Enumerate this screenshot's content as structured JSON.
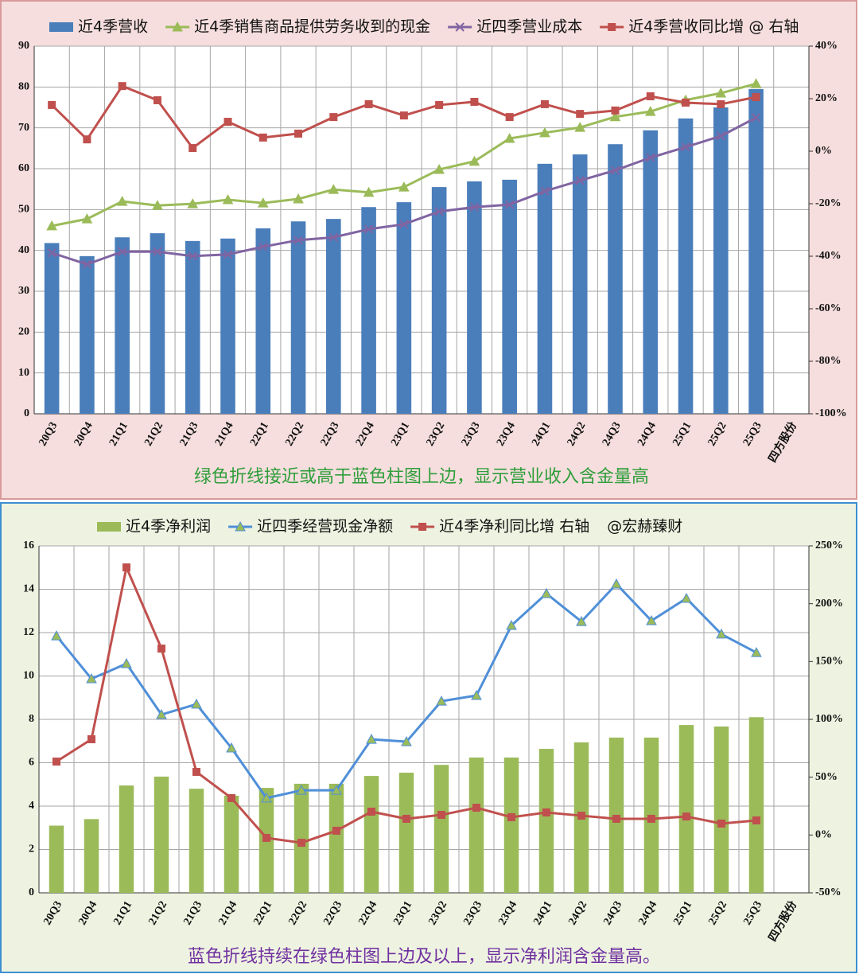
{
  "chart_data": [
    {
      "type": "bar",
      "categories": [
        "20Q3",
        "20Q4",
        "21Q1",
        "21Q2",
        "21Q3",
        "21Q4",
        "22Q1",
        "22Q2",
        "22Q3",
        "22Q4",
        "23Q1",
        "23Q2",
        "23Q3",
        "23Q4",
        "24Q1",
        "24Q2",
        "24Q3",
        "24Q4",
        "25Q1",
        "25Q2",
        "25Q3",
        "四方股份"
      ],
      "series": [
        {
          "name": "近4季营收",
          "type": "bar",
          "color": "#4a7ebb",
          "values": [
            41.8,
            38.6,
            43.2,
            44.2,
            42.3,
            42.9,
            45.4,
            47.1,
            47.7,
            50.6,
            51.8,
            55.5,
            56.9,
            57.3,
            61.2,
            63.5,
            66.0,
            69.4,
            72.3,
            75.0,
            79.5,
            null
          ]
        },
        {
          "name": "近4季销售商品提供劳务收到的现金",
          "type": "line",
          "marker": "triangle",
          "color": "#9bbb59",
          "values": [
            46.0,
            47.7,
            52.0,
            51.0,
            51.4,
            52.4,
            51.6,
            52.6,
            54.9,
            54.2,
            55.5,
            59.8,
            61.8,
            67.4,
            68.8,
            70.1,
            72.7,
            74.0,
            76.8,
            78.5,
            80.8,
            null
          ]
        },
        {
          "name": "近四季营业成本",
          "type": "line",
          "marker": "x",
          "color": "#8064a2",
          "values": [
            39.4,
            36.6,
            39.7,
            39.7,
            38.6,
            39.0,
            40.9,
            42.5,
            43.2,
            45.2,
            46.4,
            49.5,
            50.6,
            51.2,
            54.5,
            57.1,
            59.6,
            62.7,
            65.3,
            68.0,
            72.5,
            null
          ]
        },
        {
          "name": "近4季营收同比增 @ 右轴",
          "type": "line",
          "marker": "square",
          "color": "#c0504d",
          "axis": "y2",
          "values": [
            17.6,
            4.5,
            24.8,
            19.4,
            1.2,
            11.2,
            5.2,
            6.7,
            13.0,
            17.9,
            13.6,
            17.6,
            18.8,
            13.0,
            17.9,
            14.2,
            15.5,
            20.9,
            18.5,
            17.9,
            20.6,
            null
          ]
        }
      ],
      "ylim": [
        0,
        90
      ],
      "yticks": [
        0,
        10,
        20,
        30,
        40,
        50,
        60,
        70,
        80,
        90
      ],
      "y2lim": [
        -100,
        40
      ],
      "y2ticks": [
        {
          "value": -100,
          "label": "-100%"
        },
        {
          "value": -80,
          "label": "-80%"
        },
        {
          "value": -60,
          "label": "-60%"
        },
        {
          "value": -40,
          "label": "-40%"
        },
        {
          "value": -20,
          "label": "-20%"
        },
        {
          "value": 0,
          "label": "0%"
        },
        {
          "value": 20,
          "label": "20%"
        },
        {
          "value": 40,
          "label": "40%"
        }
      ],
      "grid": true,
      "legend": "top",
      "caption": "绿色折线接近或高于蓝色柱图上边，显示营业收入含金量高"
    },
    {
      "type": "bar",
      "categories": [
        "20Q3",
        "20Q4",
        "21Q1",
        "21Q2",
        "21Q3",
        "21Q4",
        "22Q1",
        "22Q2",
        "22Q3",
        "22Q4",
        "23Q1",
        "23Q2",
        "23Q3",
        "23Q4",
        "24Q1",
        "24Q2",
        "24Q3",
        "24Q4",
        "25Q1",
        "25Q2",
        "25Q3",
        "四方股份"
      ],
      "series": [
        {
          "name": "近4季净利润",
          "type": "bar",
          "color": "#9bbb59",
          "values": [
            3.1,
            3.4,
            4.95,
            5.36,
            4.8,
            4.48,
            4.84,
            5.03,
            5.03,
            5.39,
            5.54,
            5.9,
            6.24,
            6.24,
            6.64,
            6.94,
            7.16,
            7.16,
            7.74,
            7.67,
            8.1,
            null
          ]
        },
        {
          "name": "近四季经营现金净额",
          "type": "line",
          "marker": "triangle",
          "color": "#4f8fd8",
          "marker_color": "#9bbb59",
          "values": [
            11.85,
            9.87,
            10.57,
            8.22,
            8.7,
            6.68,
            4.37,
            4.73,
            4.73,
            7.08,
            6.97,
            8.84,
            9.1,
            12.33,
            13.8,
            12.51,
            14.24,
            12.55,
            13.58,
            11.93,
            11.08,
            null
          ]
        },
        {
          "name": "近4季净利同比增 右轴",
          "type": "line",
          "marker": "square",
          "color": "#c0504d",
          "axis": "y2",
          "values": [
            63.5,
            82.8,
            231.4,
            161.2,
            54.6,
            31.9,
            -2.5,
            -6.7,
            3.7,
            20.2,
            14.0,
            17.4,
            23.6,
            15.4,
            19.5,
            16.7,
            14.0,
            14.0,
            16.0,
            9.9,
            12.6,
            null
          ]
        }
      ],
      "legend_note": "@宏赫臻财",
      "ylim": [
        0,
        16
      ],
      "yticks": [
        0,
        2,
        4,
        6,
        8,
        10,
        12,
        14,
        16
      ],
      "y2lim": [
        -50,
        250
      ],
      "y2ticks": [
        {
          "value": -50,
          "label": "-50%"
        },
        {
          "value": 0,
          "label": "0%"
        },
        {
          "value": 50,
          "label": "50%"
        },
        {
          "value": 100,
          "label": "100%"
        },
        {
          "value": 150,
          "label": "150%"
        },
        {
          "value": 200,
          "label": "200%"
        },
        {
          "value": 250,
          "label": "250%"
        }
      ],
      "grid": true,
      "legend": "top",
      "caption": "蓝色折线持续在绿色柱图上边及以上，显示净利润含金量高。"
    }
  ]
}
